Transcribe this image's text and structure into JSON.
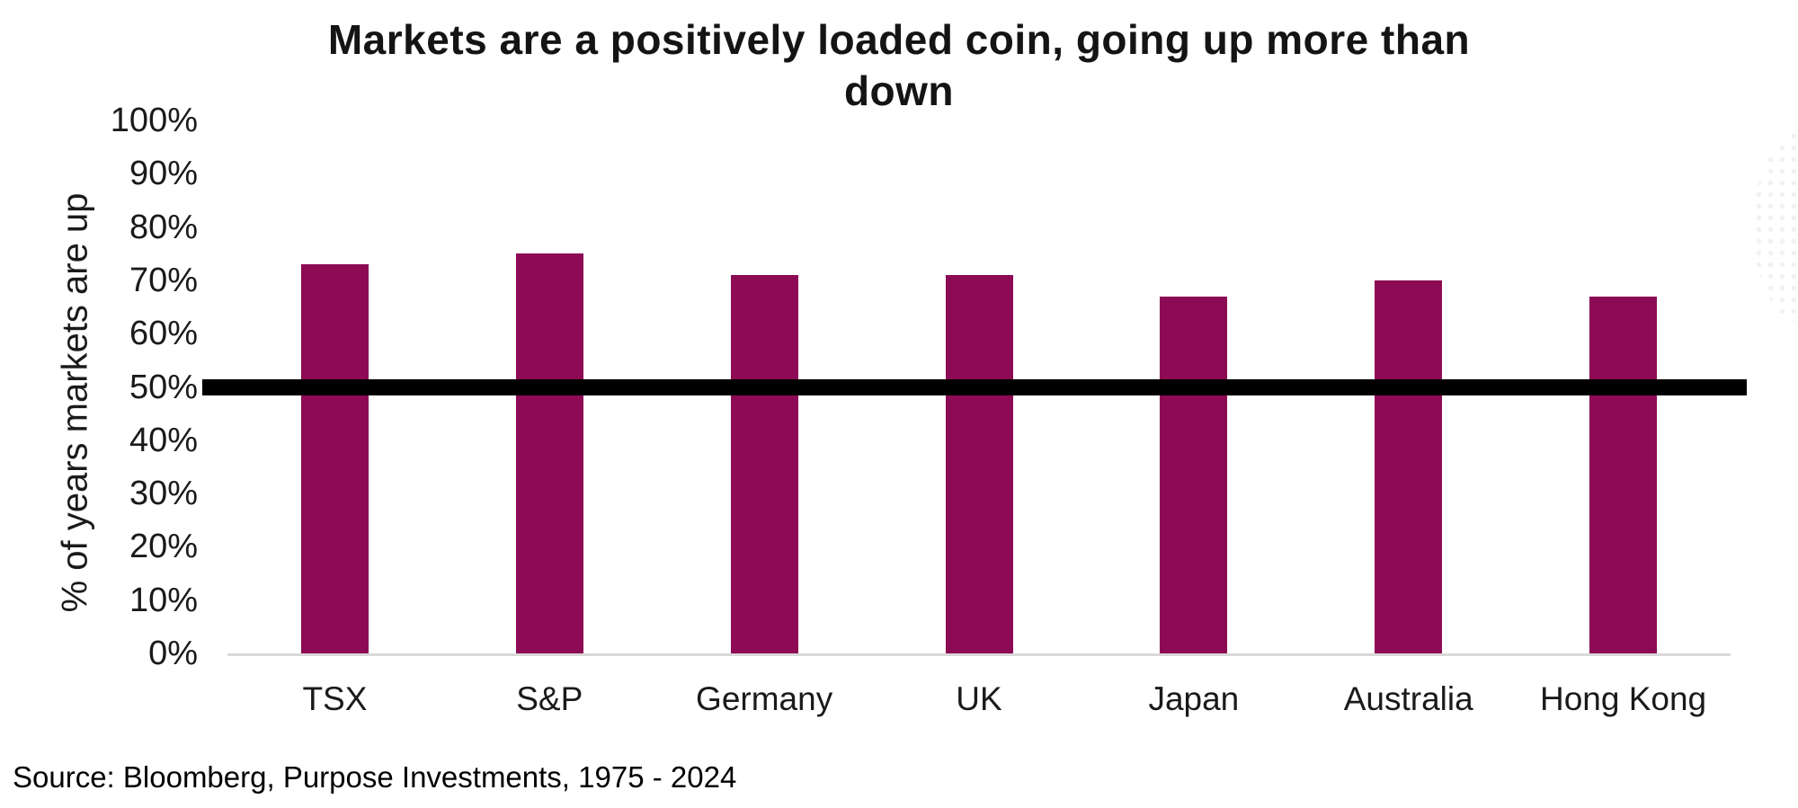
{
  "title_lines": [
    "Markets are a positively loaded coin, going up more than",
    "down"
  ],
  "source": "Source: Bloomberg, Purpose Investments, 1975 - 2024",
  "colors": {
    "bar": "#8D0A55",
    "reference_line": "#000000",
    "axis_line": "#D9D9D9",
    "text": "#1A1A1A"
  },
  "chart_data": {
    "type": "bar",
    "title": "Markets are a positively loaded coin, going up more than down",
    "categories": [
      "TSX",
      "S&P",
      "Germany",
      "UK",
      "Japan",
      "Australia",
      "Hong Kong"
    ],
    "values": [
      73,
      75,
      71,
      71,
      67,
      70,
      67
    ],
    "xlabel": "",
    "ylabel": "% of years markets are up",
    "ylim": [
      0,
      100
    ],
    "ytick_labels": [
      "0%",
      "10%",
      "20%",
      "30%",
      "40%",
      "50%",
      "60%",
      "70%",
      "80%",
      "90%",
      "100%"
    ],
    "ytick_values": [
      0,
      10,
      20,
      30,
      40,
      50,
      60,
      70,
      80,
      90,
      100
    ],
    "reference_line": {
      "value": 50,
      "style": "thick-solid",
      "color": "#000000"
    },
    "grid": false,
    "legend": null,
    "source": "Source: Bloomberg, Purpose Investments, 1975 - 2024"
  }
}
